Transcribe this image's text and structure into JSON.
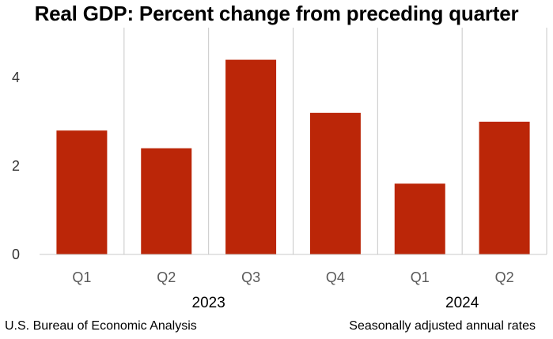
{
  "chart_data": {
    "type": "bar",
    "title": "Real GDP:  Percent change from preceding quarter",
    "categories": [
      "Q1",
      "Q2",
      "Q3",
      "Q4",
      "Q1",
      "Q2"
    ],
    "groups": [
      {
        "label": "2023",
        "categories": [
          "Q1",
          "Q2",
          "Q3",
          "Q4"
        ]
      },
      {
        "label": "2024",
        "categories": [
          "Q1",
          "Q2"
        ]
      }
    ],
    "values": [
      2.8,
      2.4,
      4.4,
      3.2,
      1.6,
      3.0
    ],
    "yticks": [
      0,
      2,
      4
    ],
    "ylim": [
      0,
      5
    ],
    "bar_color": "#BB2608",
    "grid": "vertical separators",
    "xlabel": "",
    "ylabel": ""
  },
  "footer": {
    "source": "U.S. Bureau of Economic Analysis",
    "note": "Seasonally adjusted annual rates"
  }
}
